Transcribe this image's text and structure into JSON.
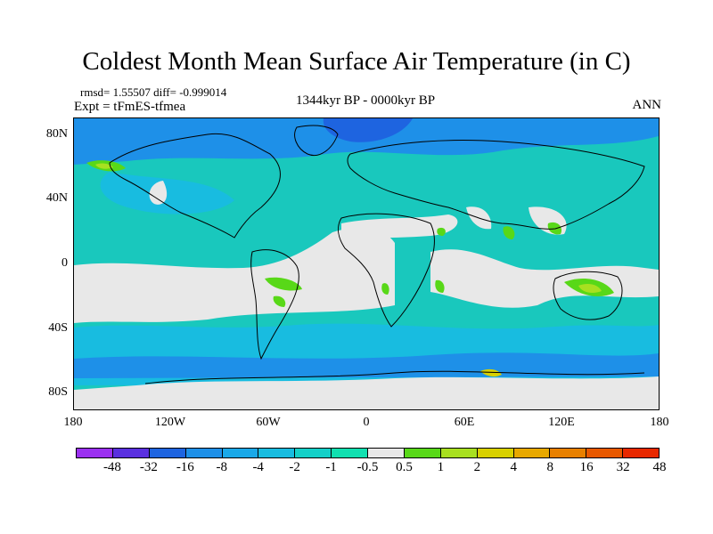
{
  "title": "Coldest Month Mean Surface Air Temperature (in C)",
  "stats": "rmsd= 1.55507 diff= -0.999014",
  "experiment": "Expt = tFmES-tfmea",
  "period": "1344kyr BP - 0000kyr BP",
  "season": "ANN",
  "lat_ticks": [
    "80N",
    "40N",
    "0",
    "40S",
    "80S"
  ],
  "lon_ticks": [
    "180",
    "120W",
    "60W",
    "0",
    "60E",
    "120E",
    "180"
  ],
  "colorbar": {
    "colors": [
      "#9b30f0",
      "#5a30e0",
      "#1e64e0",
      "#1e90e8",
      "#1aa8e8",
      "#18bce0",
      "#14d0c8",
      "#10e0b0",
      "#e8e8e8",
      "#58d818",
      "#a8e020",
      "#d8d000",
      "#e8a800",
      "#e88000",
      "#e85800",
      "#e82800"
    ],
    "labels": [
      "-48",
      "-32",
      "-16",
      "-8",
      "-4",
      "-2",
      "-1",
      "-0.5",
      "0.5",
      "1",
      "2",
      "4",
      "8",
      "16",
      "32",
      "48"
    ]
  },
  "map_colors": {
    "ocean_base": "#19c8bd",
    "neutral": "#e8e8e8",
    "cool_light": "#18bce0",
    "cool_mid": "#1e90e8",
    "cool_dark": "#1e64e0",
    "warm_light": "#58d818",
    "warm_mid": "#a8e020",
    "warm_high": "#d8d000",
    "warm_hot": "#e8a800",
    "coast": "#000000"
  }
}
